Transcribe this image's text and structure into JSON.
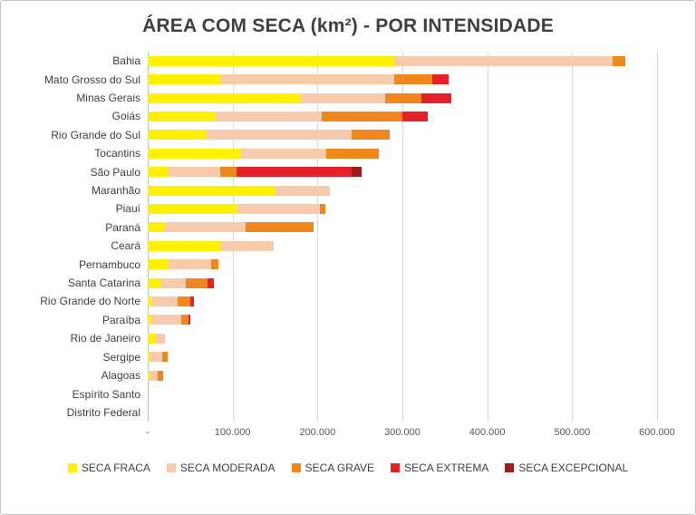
{
  "chart_data": {
    "type": "bar",
    "orientation": "horizontal",
    "stacked": true,
    "title": "ÁREA COM SECA (km²) - POR INTENSIDADE",
    "xlabel": "",
    "ylabel": "",
    "xlim": [
      0,
      600000
    ],
    "grid": true,
    "legend_position": "bottom",
    "x_ticks": [
      "-",
      "100.000",
      "200.000",
      "300.000",
      "400.000",
      "500.000",
      "600.000"
    ],
    "categories": [
      "Bahia",
      "Mato Grosso do Sul",
      "Minas Gerais",
      "Goiás",
      "Rio Grande do Sul",
      "Tocantins",
      "São Paulo",
      "Maranhão",
      "Piauí",
      "Paraná",
      "Ceará",
      "Pernambuco",
      "Santa Catarina",
      "Rio Grande do Norte",
      "Paraíba",
      "Rio de Janeiro",
      "Sergipe",
      "Alagoas",
      "Espírito Santo",
      "Distrito Federal"
    ],
    "series": [
      {
        "name": "SECA FRACA",
        "color": "#fff100",
        "values": [
          290000,
          85000,
          180000,
          80000,
          68000,
          110000,
          25000,
          150000,
          105000,
          20000,
          85000,
          25000,
          15000,
          5000,
          5000,
          10000,
          2000,
          2000,
          0,
          0
        ]
      },
      {
        "name": "SECA MODERADA",
        "color": "#f8cbad",
        "values": [
          258000,
          205000,
          100000,
          125000,
          172000,
          100000,
          60000,
          65000,
          98000,
          95000,
          63000,
          50000,
          30000,
          30000,
          35000,
          10000,
          15000,
          10000,
          0,
          0
        ]
      },
      {
        "name": "SECA GRAVE",
        "color": "#f0861c",
        "values": [
          15000,
          45000,
          42000,
          95000,
          45000,
          62000,
          20000,
          0,
          6000,
          80000,
          0,
          8000,
          25000,
          15000,
          8000,
          0,
          7000,
          6000,
          0,
          0
        ]
      },
      {
        "name": "SECA EXTREMA",
        "color": "#e6212a",
        "values": [
          0,
          20000,
          36000,
          30000,
          0,
          0,
          135000,
          0,
          0,
          0,
          0,
          0,
          8000,
          5000,
          2000,
          0,
          0,
          0,
          0,
          0
        ]
      },
      {
        "name": "SECA EXCEPCIONAL",
        "color": "#9e1b1e",
        "values": [
          0,
          0,
          0,
          0,
          0,
          0,
          12000,
          0,
          0,
          0,
          0,
          0,
          0,
          0,
          0,
          0,
          0,
          0,
          0,
          0
        ]
      }
    ]
  }
}
